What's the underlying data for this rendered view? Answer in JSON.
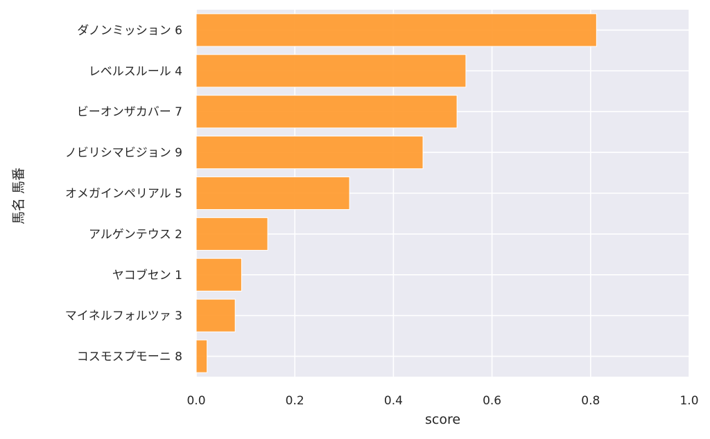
{
  "chart_data": {
    "type": "bar",
    "orientation": "horizontal",
    "categories": [
      "ダノンミッション 6",
      "レベルスルール 4",
      "ビーオンザカバー 7",
      "ノビリシマビジョン 9",
      "オメガインペリアル 5",
      "アルゲンテウス 2",
      "ヤコブセン 1",
      "マイネルフォルツァ 3",
      "コスモスプモーニ 8"
    ],
    "values": [
      0.812,
      0.547,
      0.529,
      0.46,
      0.311,
      0.145,
      0.092,
      0.079,
      0.022
    ],
    "xlabel": "score",
    "ylabel": "馬名 馬番",
    "xlim": [
      0.0,
      1.0
    ],
    "xticks": [
      "0.0",
      "0.2",
      "0.4",
      "0.6",
      "0.8",
      "1.0"
    ],
    "grid": true,
    "colors": {
      "bar": "#ff9a2e",
      "plot_background": "#eaeaf2",
      "grid": "#ffffff",
      "text": "#262626"
    }
  }
}
